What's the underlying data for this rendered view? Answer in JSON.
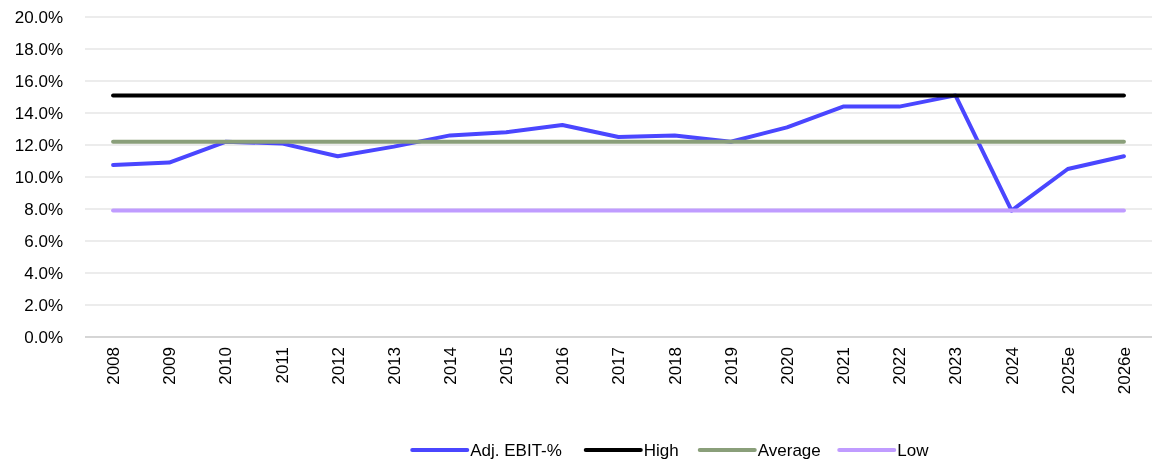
{
  "chart_data": {
    "type": "line",
    "categories": [
      "2008",
      "2009",
      "2010",
      "2011",
      "2012",
      "2013",
      "2014",
      "2015",
      "2016",
      "2017",
      "2018",
      "2019",
      "2020",
      "2021",
      "2022",
      "2023",
      "2024",
      "2025e",
      "2026e"
    ],
    "series": [
      {
        "name": "Adj. EBIT-%",
        "color": "#4a46ff",
        "values": [
          10.75,
          10.9,
          12.2,
          12.1,
          11.3,
          11.9,
          12.6,
          12.8,
          13.25,
          12.5,
          12.6,
          12.2,
          13.1,
          14.4,
          14.4,
          15.1,
          7.9,
          10.5,
          11.3
        ]
      },
      {
        "name": "High",
        "color": "#000000",
        "values": [
          15.1,
          15.1,
          15.1,
          15.1,
          15.1,
          15.1,
          15.1,
          15.1,
          15.1,
          15.1,
          15.1,
          15.1,
          15.1,
          15.1,
          15.1,
          15.1,
          15.1,
          15.1,
          15.1
        ]
      },
      {
        "name": "Average",
        "color": "#8a9f7a",
        "values": [
          12.2,
          12.2,
          12.2,
          12.2,
          12.2,
          12.2,
          12.2,
          12.2,
          12.2,
          12.2,
          12.2,
          12.2,
          12.2,
          12.2,
          12.2,
          12.2,
          12.2,
          12.2,
          12.2
        ]
      },
      {
        "name": "Low",
        "color": "#c09cff",
        "values": [
          7.9,
          7.9,
          7.9,
          7.9,
          7.9,
          7.9,
          7.9,
          7.9,
          7.9,
          7.9,
          7.9,
          7.9,
          7.9,
          7.9,
          7.9,
          7.9,
          7.9,
          7.9,
          7.9
        ]
      }
    ],
    "ylim": [
      0,
      20
    ],
    "yticks": [
      {
        "value": 0,
        "label": "0.0%"
      },
      {
        "value": 2,
        "label": "2.0%"
      },
      {
        "value": 4,
        "label": "4.0%"
      },
      {
        "value": 6,
        "label": "6.0%"
      },
      {
        "value": 8,
        "label": "8.0%"
      },
      {
        "value": 10,
        "label": "10.0%"
      },
      {
        "value": 12,
        "label": "12.0%"
      },
      {
        "value": 14,
        "label": "14.0%"
      },
      {
        "value": 16,
        "label": "16.0%"
      },
      {
        "value": 18,
        "label": "18.0%"
      },
      {
        "value": 20,
        "label": "20.0%"
      }
    ],
    "grid": "y",
    "legend": "bottom",
    "marker": "none",
    "line_style": "solid"
  }
}
